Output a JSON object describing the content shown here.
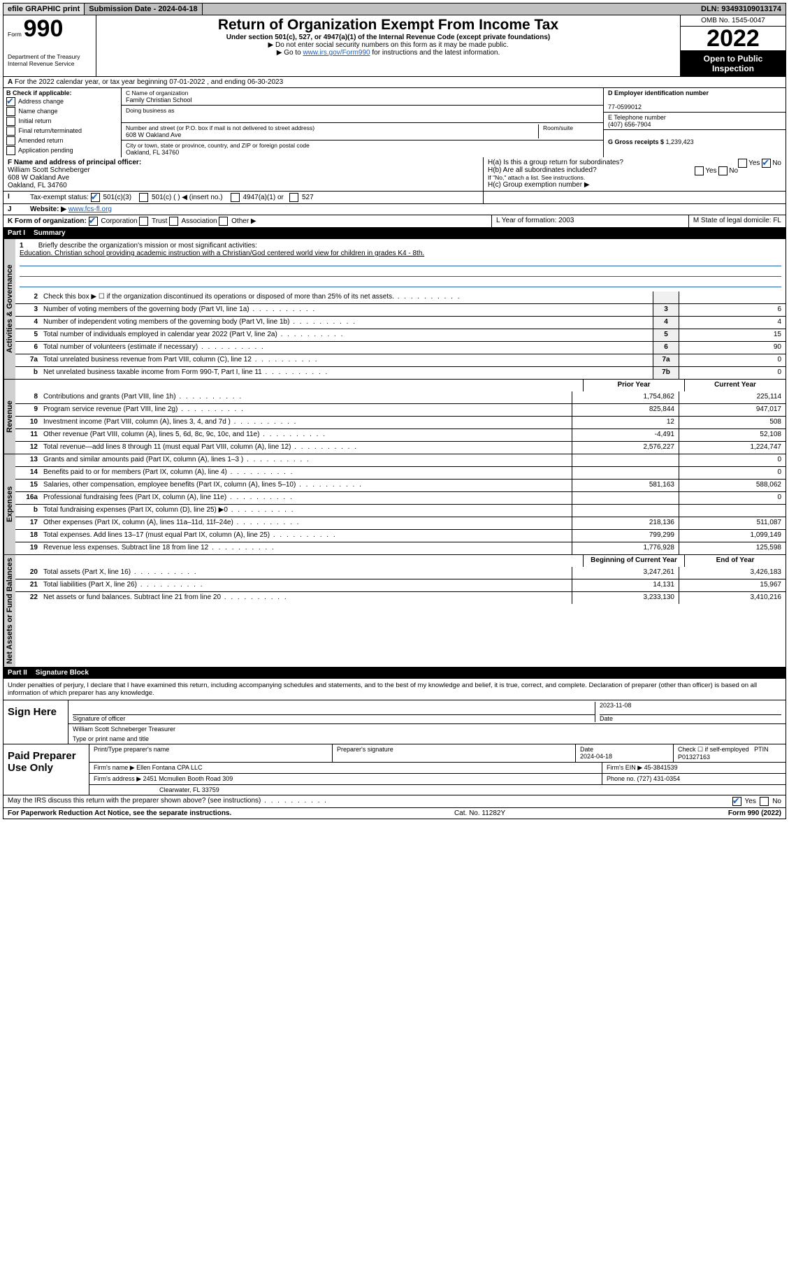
{
  "topbar": {
    "efile": "efile GRAPHIC print",
    "submission": "Submission Date - 2024-04-18",
    "dln": "DLN: 93493109013174"
  },
  "header": {
    "form_word": "Form",
    "form_num": "990",
    "title": "Return of Organization Exempt From Income Tax",
    "subtitle": "Under section 501(c), 527, or 4947(a)(1) of the Internal Revenue Code (except private foundations)",
    "note1": "▶ Do not enter social security numbers on this form as it may be made public.",
    "note2_pre": "▶ Go to ",
    "note2_link": "www.irs.gov/Form990",
    "note2_post": " for instructions and the latest information.",
    "omb": "OMB No. 1545-0047",
    "year": "2022",
    "public": "Open to Public Inspection",
    "dept": "Department of the Treasury\nInternal Revenue Service"
  },
  "rowA": "For the 2022 calendar year, or tax year beginning 07-01-2022    , and ending 06-30-2023",
  "blockB": {
    "heading": "B Check if applicable:",
    "opts": {
      "addr": "Address change",
      "name": "Name change",
      "initial": "Initial return",
      "final": "Final return/terminated",
      "amended": "Amended return",
      "app": "Application pending"
    },
    "c_label": "C Name of organization",
    "c_name": "Family Christian School",
    "dba_label": "Doing business as",
    "addr_label": "Number and street (or P.O. box if mail is not delivered to street address)",
    "room_label": "Room/suite",
    "addr": "608 W Oakland Ave",
    "city_label": "City or town, state or province, country, and ZIP or foreign postal code",
    "city": "Oakland, FL  34760",
    "d_label": "D Employer identification number",
    "d_val": "77-0599012",
    "e_label": "E Telephone number",
    "e_val": "(407) 656-7904",
    "g_label": "G Gross receipts $ ",
    "g_val": "1,239,423"
  },
  "rowF": {
    "f_label": "F  Name and address of principal officer:",
    "f_name": "William Scott Schneberger",
    "f_addr1": "608 W Oakland Ave",
    "f_addr2": "Oakland, FL  34760",
    "ha": "H(a)  Is this a group return for subordinates?",
    "hb": "H(b)  Are all subordinates included?",
    "hb_note": "If \"No,\" attach a list. See instructions.",
    "hc": "H(c)  Group exemption number ▶",
    "yes": "Yes",
    "no": "No"
  },
  "rowI": {
    "label": "Tax-exempt status:",
    "o1": "501(c)(3)",
    "o2": "501(c) (   ) ◀ (insert no.)",
    "o3": "4947(a)(1) or",
    "o4": "527"
  },
  "rowJ": {
    "label": "Website: ▶",
    "val": "www.fcs-fl.org"
  },
  "rowK": {
    "label": "K Form of organization:",
    "o1": "Corporation",
    "o2": "Trust",
    "o3": "Association",
    "o4": "Other ▶",
    "l": "L Year of formation: 2003",
    "m": "M State of legal domicile: FL"
  },
  "part1": {
    "num": "Part I",
    "title": "Summary"
  },
  "mission": {
    "q": "Briefly describe the organization's mission or most significant activities:",
    "a": "Education. Christian school providing academic instruction with a Christian/God centered world view for children in grades K4 - 8th."
  },
  "governance": [
    {
      "n": "2",
      "t": "Check this box ▶ ☐  if the organization discontinued its operations or disposed of more than 25% of its net assets.",
      "k": "",
      "v": ""
    },
    {
      "n": "3",
      "t": "Number of voting members of the governing body (Part VI, line 1a)",
      "k": "3",
      "v": "6"
    },
    {
      "n": "4",
      "t": "Number of independent voting members of the governing body (Part VI, line 1b)",
      "k": "4",
      "v": "4"
    },
    {
      "n": "5",
      "t": "Total number of individuals employed in calendar year 2022 (Part V, line 2a)",
      "k": "5",
      "v": "15"
    },
    {
      "n": "6",
      "t": "Total number of volunteers (estimate if necessary)",
      "k": "6",
      "v": "90"
    },
    {
      "n": "7a",
      "t": "Total unrelated business revenue from Part VIII, column (C), line 12",
      "k": "7a",
      "v": "0"
    },
    {
      "n": "b",
      "t": "Net unrelated business taxable income from Form 990-T, Part I, line 11",
      "k": "7b",
      "v": "0"
    }
  ],
  "twocol_hdr": {
    "prior": "Prior Year",
    "current": "Current Year"
  },
  "revenue": [
    {
      "n": "8",
      "t": "Contributions and grants (Part VIII, line 1h)",
      "p": "1,754,862",
      "c": "225,114"
    },
    {
      "n": "9",
      "t": "Program service revenue (Part VIII, line 2g)",
      "p": "825,844",
      "c": "947,017"
    },
    {
      "n": "10",
      "t": "Investment income (Part VIII, column (A), lines 3, 4, and 7d )",
      "p": "12",
      "c": "508"
    },
    {
      "n": "11",
      "t": "Other revenue (Part VIII, column (A), lines 5, 6d, 8c, 9c, 10c, and 11e)",
      "p": "-4,491",
      "c": "52,108"
    },
    {
      "n": "12",
      "t": "Total revenue—add lines 8 through 11 (must equal Part VIII, column (A), line 12)",
      "p": "2,576,227",
      "c": "1,224,747"
    }
  ],
  "expenses": [
    {
      "n": "13",
      "t": "Grants and similar amounts paid (Part IX, column (A), lines 1–3 )",
      "p": "",
      "c": "0"
    },
    {
      "n": "14",
      "t": "Benefits paid to or for members (Part IX, column (A), line 4)",
      "p": "",
      "c": "0"
    },
    {
      "n": "15",
      "t": "Salaries, other compensation, employee benefits (Part IX, column (A), lines 5–10)",
      "p": "581,163",
      "c": "588,062"
    },
    {
      "n": "16a",
      "t": "Professional fundraising fees (Part IX, column (A), line 11e)",
      "p": "",
      "c": "0"
    },
    {
      "n": "b",
      "t": "Total fundraising expenses (Part IX, column (D), line 25) ▶0",
      "p": "",
      "c": ""
    },
    {
      "n": "17",
      "t": "Other expenses (Part IX, column (A), lines 11a–11d, 11f–24e)",
      "p": "218,136",
      "c": "511,087"
    },
    {
      "n": "18",
      "t": "Total expenses. Add lines 13–17 (must equal Part IX, column (A), line 25)",
      "p": "799,299",
      "c": "1,099,149"
    },
    {
      "n": "19",
      "t": "Revenue less expenses. Subtract line 18 from line 12",
      "p": "1,776,928",
      "c": "125,598"
    }
  ],
  "net_hdr": {
    "begin": "Beginning of Current Year",
    "end": "End of Year"
  },
  "netassets": [
    {
      "n": "20",
      "t": "Total assets (Part X, line 16)",
      "p": "3,247,261",
      "c": "3,426,183"
    },
    {
      "n": "21",
      "t": "Total liabilities (Part X, line 26)",
      "p": "14,131",
      "c": "15,967"
    },
    {
      "n": "22",
      "t": "Net assets or fund balances. Subtract line 21 from line 20",
      "p": "3,233,130",
      "c": "3,410,216"
    }
  ],
  "part2": {
    "num": "Part II",
    "title": "Signature Block"
  },
  "declaration": "Under penalties of perjury, I declare that I have examined this return, including accompanying schedules and statements, and to the best of my knowledge and belief, it is true, correct, and complete. Declaration of preparer (other than officer) is based on all information of which preparer has any knowledge.",
  "sign": {
    "label": "Sign Here",
    "sig_label": "Signature of officer",
    "date_label": "Date",
    "date": "2023-11-08",
    "name": "William Scott Schneberger  Treasurer",
    "name_label": "Type or print name and title"
  },
  "paid": {
    "label": "Paid Preparer Use Only",
    "h1": "Print/Type preparer's name",
    "h2": "Preparer's signature",
    "h3_label": "Date",
    "h3": "2024-04-18",
    "h4_check": "Check ☐ if self-employed",
    "h4_ptin_label": "PTIN",
    "h4_ptin": "P01327163",
    "firm_name_label": "Firm's name      ▶ ",
    "firm_name": "Ellen Fontana CPA LLC",
    "firm_ein_label": "Firm's EIN ▶ ",
    "firm_ein": "45-3841539",
    "firm_addr_label": "Firm's address ▶ ",
    "firm_addr1": "2451 Mcmullen Booth Road 309",
    "firm_addr2": "Clearwater, FL  33759",
    "phone_label": "Phone no. ",
    "phone": "(727) 431-0354"
  },
  "discuss": {
    "q": "May the IRS discuss this return with the preparer shown above? (see instructions)",
    "yes": "Yes",
    "no": "No"
  },
  "footer": {
    "left": "For Paperwork Reduction Act Notice, see the separate instructions.",
    "mid": "Cat. No. 11282Y",
    "right": "Form 990 (2022)"
  },
  "vlabels": {
    "gov": "Activities & Governance",
    "rev": "Revenue",
    "exp": "Expenses",
    "net": "Net Assets or Fund Balances"
  }
}
